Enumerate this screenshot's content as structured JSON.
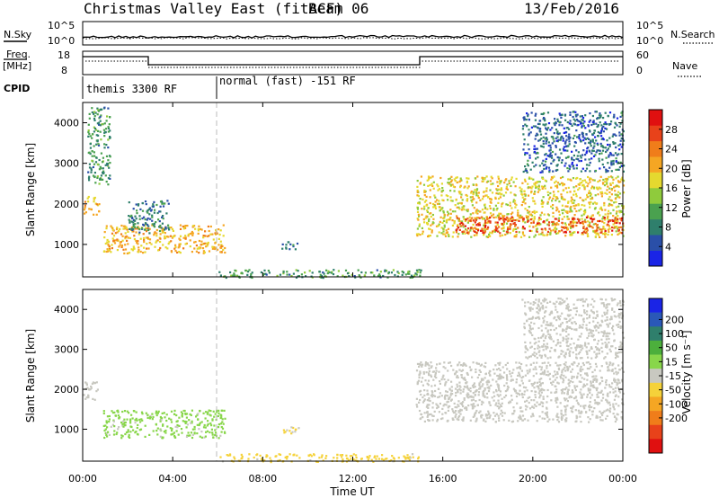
{
  "header": {
    "station": "Christmas Valley East (fitACF)",
    "beam": "Beam 06",
    "date": "13/Feb/2016"
  },
  "param_panels": {
    "nsky_label": "N.Sky",
    "nsky_ticks": [
      "10^5",
      "10^0"
    ],
    "nsearch_label": "N.Search",
    "nsearch_ticks": [
      "10^5",
      "10^0"
    ],
    "freq_label_1": "Freq.",
    "freq_label_2": "[MHz]",
    "freq_ticks": [
      "18",
      "8"
    ],
    "nave_label": "Nave",
    "nave_ticks": [
      "60",
      "0"
    ],
    "cpid_label": "CPID",
    "cpid_segments": [
      {
        "name": "themis 3300 RF",
        "start_hour": 0.0,
        "end_hour": 6.0
      },
      {
        "name": "normal (fast) -151 RF",
        "start_hour": 6.0,
        "end_hour": 24.0
      }
    ]
  },
  "chart_data": [
    {
      "type": "heatmap",
      "panel": "power",
      "ylabel": "Slant Range [km]",
      "xlabel": "",
      "xlim_hours": [
        0,
        24
      ],
      "ylim": [
        200,
        4500
      ],
      "x_ticks": [
        "00:00",
        "04:00",
        "08:00",
        "12:00",
        "16:00",
        "20:00",
        "00:00"
      ],
      "y_ticks": [
        1000,
        2000,
        3000,
        4000
      ],
      "colorbar": {
        "label": "Power [dB]",
        "ticks": [
          "4",
          "8",
          "12",
          "16",
          "20",
          "24",
          "28"
        ],
        "colors": [
          "#1a24e6",
          "#2a4fa8",
          "#2f7f6c",
          "#4aa14f",
          "#8fcb3c",
          "#e5d92f",
          "#f5a623",
          "#f07d1a",
          "#e8421a",
          "#e01010"
        ]
      },
      "series": [
        {
          "t0": 0.0,
          "t1": 0.7,
          "r0": 1750,
          "r1": 2200,
          "val": 20
        },
        {
          "t0": 0.2,
          "t1": 1.2,
          "r0": 2500,
          "r1": 4400,
          "val": 10
        },
        {
          "t0": 0.9,
          "t1": 6.3,
          "r0": 800,
          "r1": 1500,
          "val": 20
        },
        {
          "t0": 2.0,
          "t1": 3.8,
          "r0": 1300,
          "r1": 2100,
          "val": 8
        },
        {
          "t0": 6.0,
          "t1": 15.0,
          "r0": 200,
          "r1": 400,
          "val": 10
        },
        {
          "t0": 8.8,
          "t1": 9.6,
          "r0": 900,
          "r1": 1100,
          "val": 6
        },
        {
          "t0": 14.8,
          "t1": 24.0,
          "r0": 1200,
          "r1": 2700,
          "val": 18
        },
        {
          "t0": 16.5,
          "t1": 24.0,
          "r0": 1300,
          "r1": 1700,
          "val": 27
        },
        {
          "t0": 19.5,
          "t1": 24.0,
          "r0": 2800,
          "r1": 4300,
          "val": 6
        }
      ]
    },
    {
      "type": "heatmap",
      "panel": "velocity",
      "ylabel": "Slant Range [km]",
      "xlabel": "Time UT",
      "xlim_hours": [
        0,
        24
      ],
      "ylim": [
        200,
        4500
      ],
      "x_ticks": [
        "00:00",
        "04:00",
        "08:00",
        "12:00",
        "16:00",
        "20:00",
        "00:00"
      ],
      "y_ticks": [
        1000,
        2000,
        3000,
        4000
      ],
      "colorbar": {
        "label": "Velocity [m s⁻¹]",
        "ticks": [
          "200",
          "100",
          "50",
          "15",
          "-15",
          "-50",
          "-100",
          "-200"
        ],
        "colors": [
          "#1a24e6",
          "#2a58b8",
          "#2f7f6c",
          "#4caf3c",
          "#88d64a",
          "#c8c8c0",
          "#f5d23a",
          "#f5a623",
          "#f07d1a",
          "#e8421a",
          "#e01010"
        ]
      },
      "series": [
        {
          "t0": 0.0,
          "t1": 0.7,
          "r0": 1750,
          "r1": 2200,
          "val": 0
        },
        {
          "t0": 0.9,
          "t1": 6.3,
          "r0": 800,
          "r1": 1500,
          "val": 40
        },
        {
          "t0": 6.0,
          "t1": 15.0,
          "r0": 200,
          "r1": 400,
          "val": -40
        },
        {
          "t0": 8.8,
          "t1": 9.6,
          "r0": 900,
          "r1": 1100,
          "val": -30
        },
        {
          "t0": 14.8,
          "t1": 24.0,
          "r0": 1200,
          "r1": 2700,
          "val": 0
        },
        {
          "t0": 19.5,
          "t1": 24.0,
          "r0": 2800,
          "r1": 4300,
          "val": 0
        }
      ]
    }
  ]
}
